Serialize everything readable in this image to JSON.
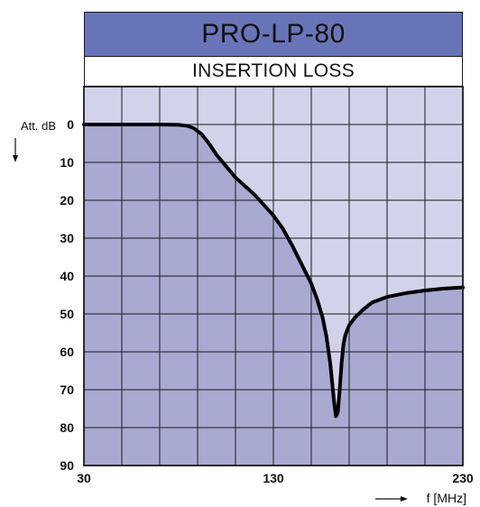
{
  "chart_data": {
    "type": "line",
    "title": "PRO-LP-80",
    "subtitle": "INSERTION LOSS",
    "ylabel": "Att. dB",
    "xlabel": "f [MHz]",
    "xlim": [
      30,
      230
    ],
    "ylim": [
      0,
      90
    ],
    "y_inverted": true,
    "grid": true,
    "x_ticks": [
      30,
      130,
      230
    ],
    "y_ticks": [
      0,
      10,
      20,
      30,
      40,
      50,
      60,
      70,
      80,
      90
    ],
    "series": [
      {
        "x": [
          30,
          50,
          70,
          80,
          85,
          88,
          92,
          96,
          100,
          105,
          110,
          120,
          130,
          135,
          140,
          145,
          150,
          153,
          156,
          158,
          160,
          161,
          162,
          163,
          164,
          165,
          166,
          167,
          168,
          170,
          173,
          177,
          182,
          190,
          200,
          210,
          220,
          230
        ],
        "y": [
          0,
          0,
          0,
          0.1,
          0.4,
          1,
          2.5,
          5,
          8,
          11,
          14,
          18.5,
          24,
          27.5,
          32,
          37,
          42,
          46,
          51,
          56,
          63,
          68,
          73,
          77,
          76,
          70,
          63,
          58,
          55.5,
          53,
          51,
          49,
          47,
          45.5,
          44.5,
          43.8,
          43.3,
          43
        ]
      }
    ]
  },
  "colors": {
    "title_fill": "#6874b8",
    "plot_background": "#d2d3eb",
    "area_fill": "#a8aad2",
    "curve": "#000000",
    "grid": "#1a1a1a"
  }
}
